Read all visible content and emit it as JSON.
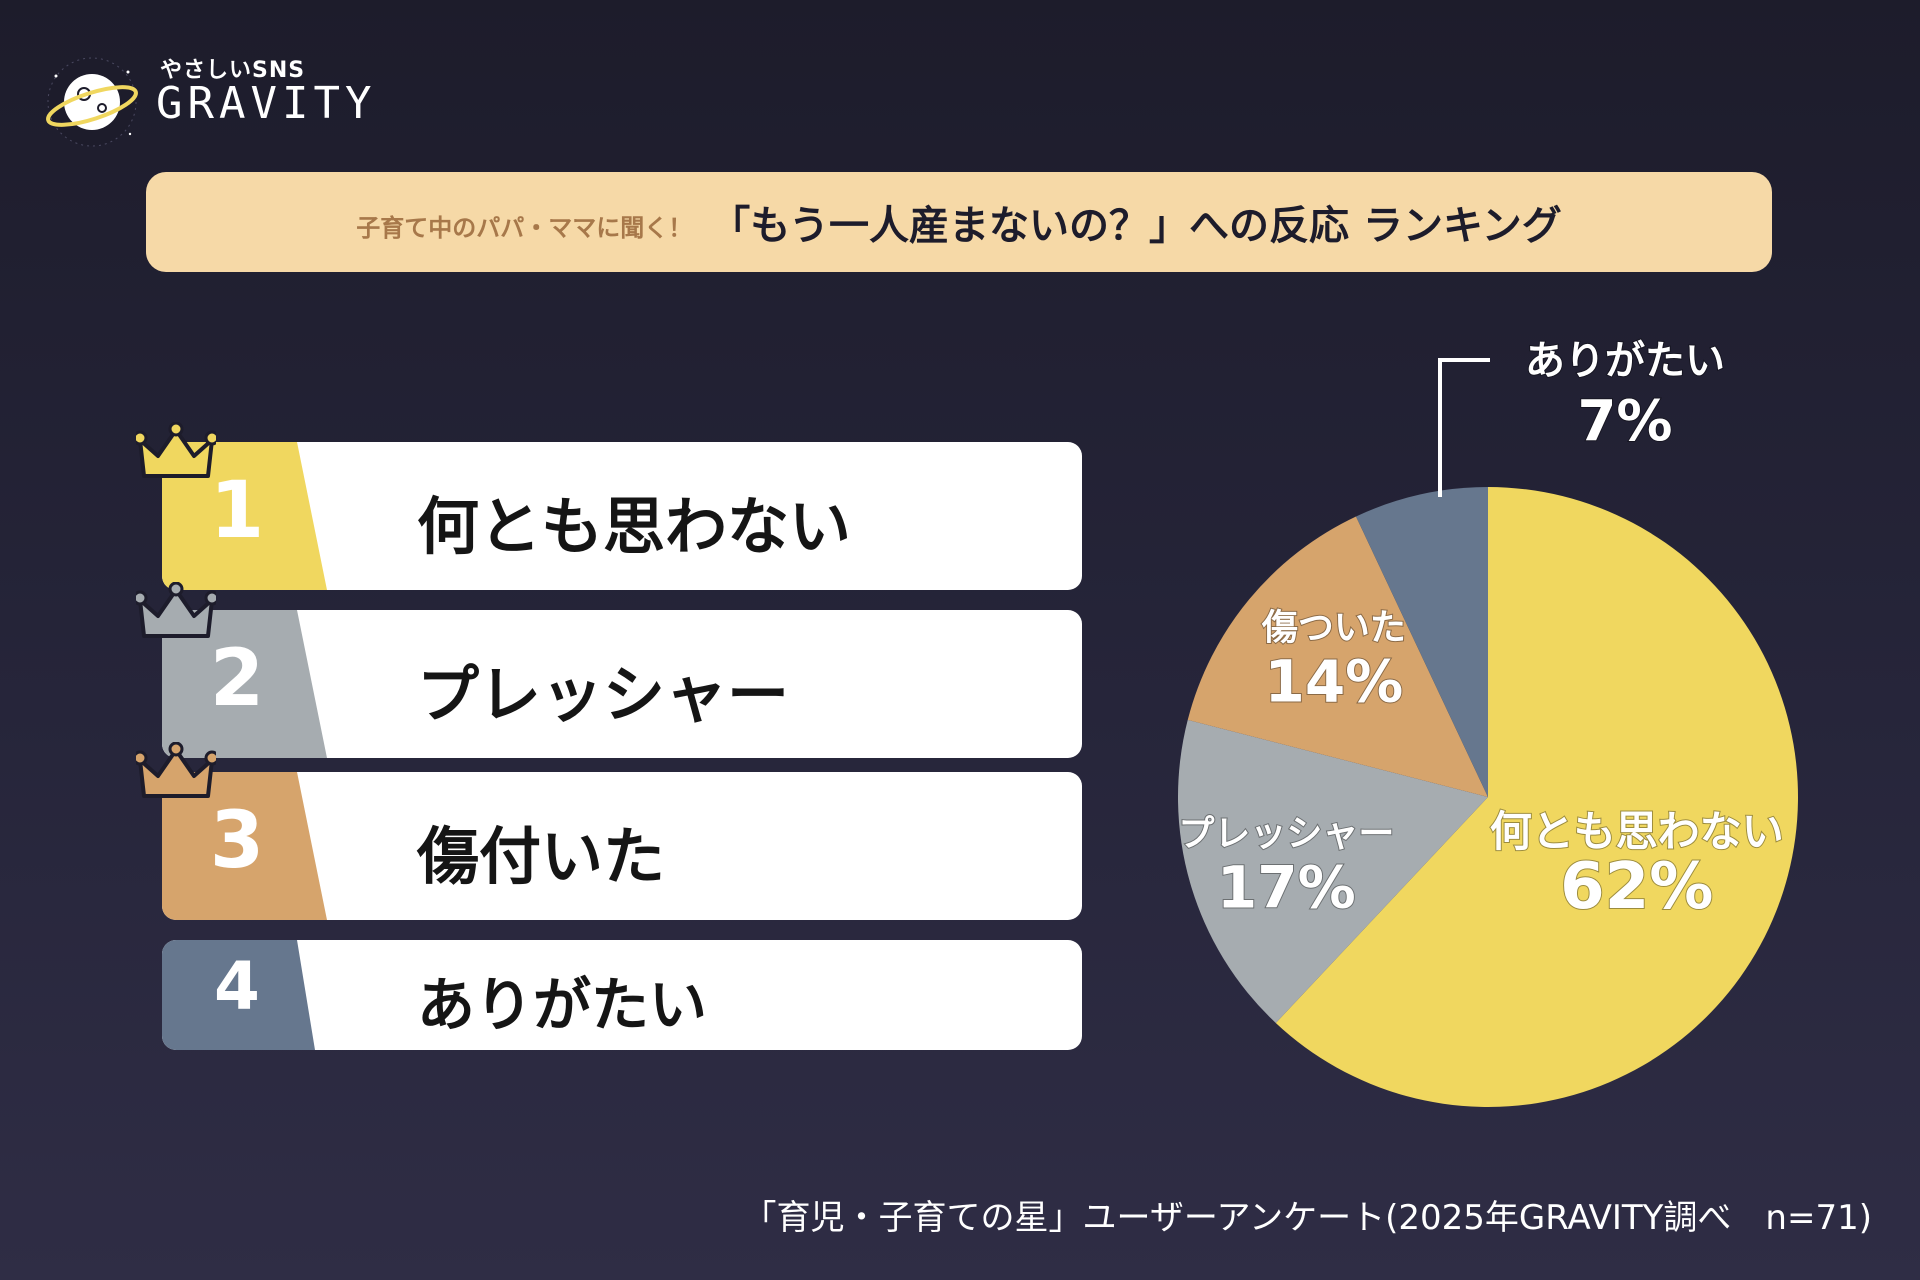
{
  "brand": {
    "sub": "やさしいSNS",
    "name": "GRAVITY"
  },
  "header": {
    "sub": "子育て中のパパ・ママに聞く！",
    "title": "「もう一人産まないの？」への反応 ランキング"
  },
  "ranking": [
    {
      "rank": "1",
      "label": "何とも思わない",
      "color": "#f0d75f",
      "crown": "#f0d75f"
    },
    {
      "rank": "2",
      "label": "プレッシャー",
      "color": "#a6acb0",
      "crown": "#a6acb0"
    },
    {
      "rank": "3",
      "label": "傷付いた",
      "color": "#d6a46c",
      "crown": "#d6a46c"
    },
    {
      "rank": "4",
      "label": "ありがたい",
      "color": "#66778e"
    }
  ],
  "chart_data": {
    "type": "pie",
    "categories": [
      "何とも思わない",
      "プレッシャー",
      "傷ついた",
      "ありがたい"
    ],
    "values": [
      62,
      17,
      14,
      7
    ],
    "unit": "%",
    "colors": [
      "#f0d75f",
      "#a6acb0",
      "#d6a46c",
      "#66778e"
    ],
    "data_labels": [
      {
        "name": "何とも思わない",
        "value": "62%"
      },
      {
        "name": "プレッシャー",
        "value": "17%"
      },
      {
        "name": "傷ついた",
        "value": "14%"
      },
      {
        "name": "ありがたい",
        "value": "7%"
      }
    ]
  },
  "footer": "「育児・子育ての星」ユーザーアンケート(2025年GRAVITY調べ　n=71)"
}
